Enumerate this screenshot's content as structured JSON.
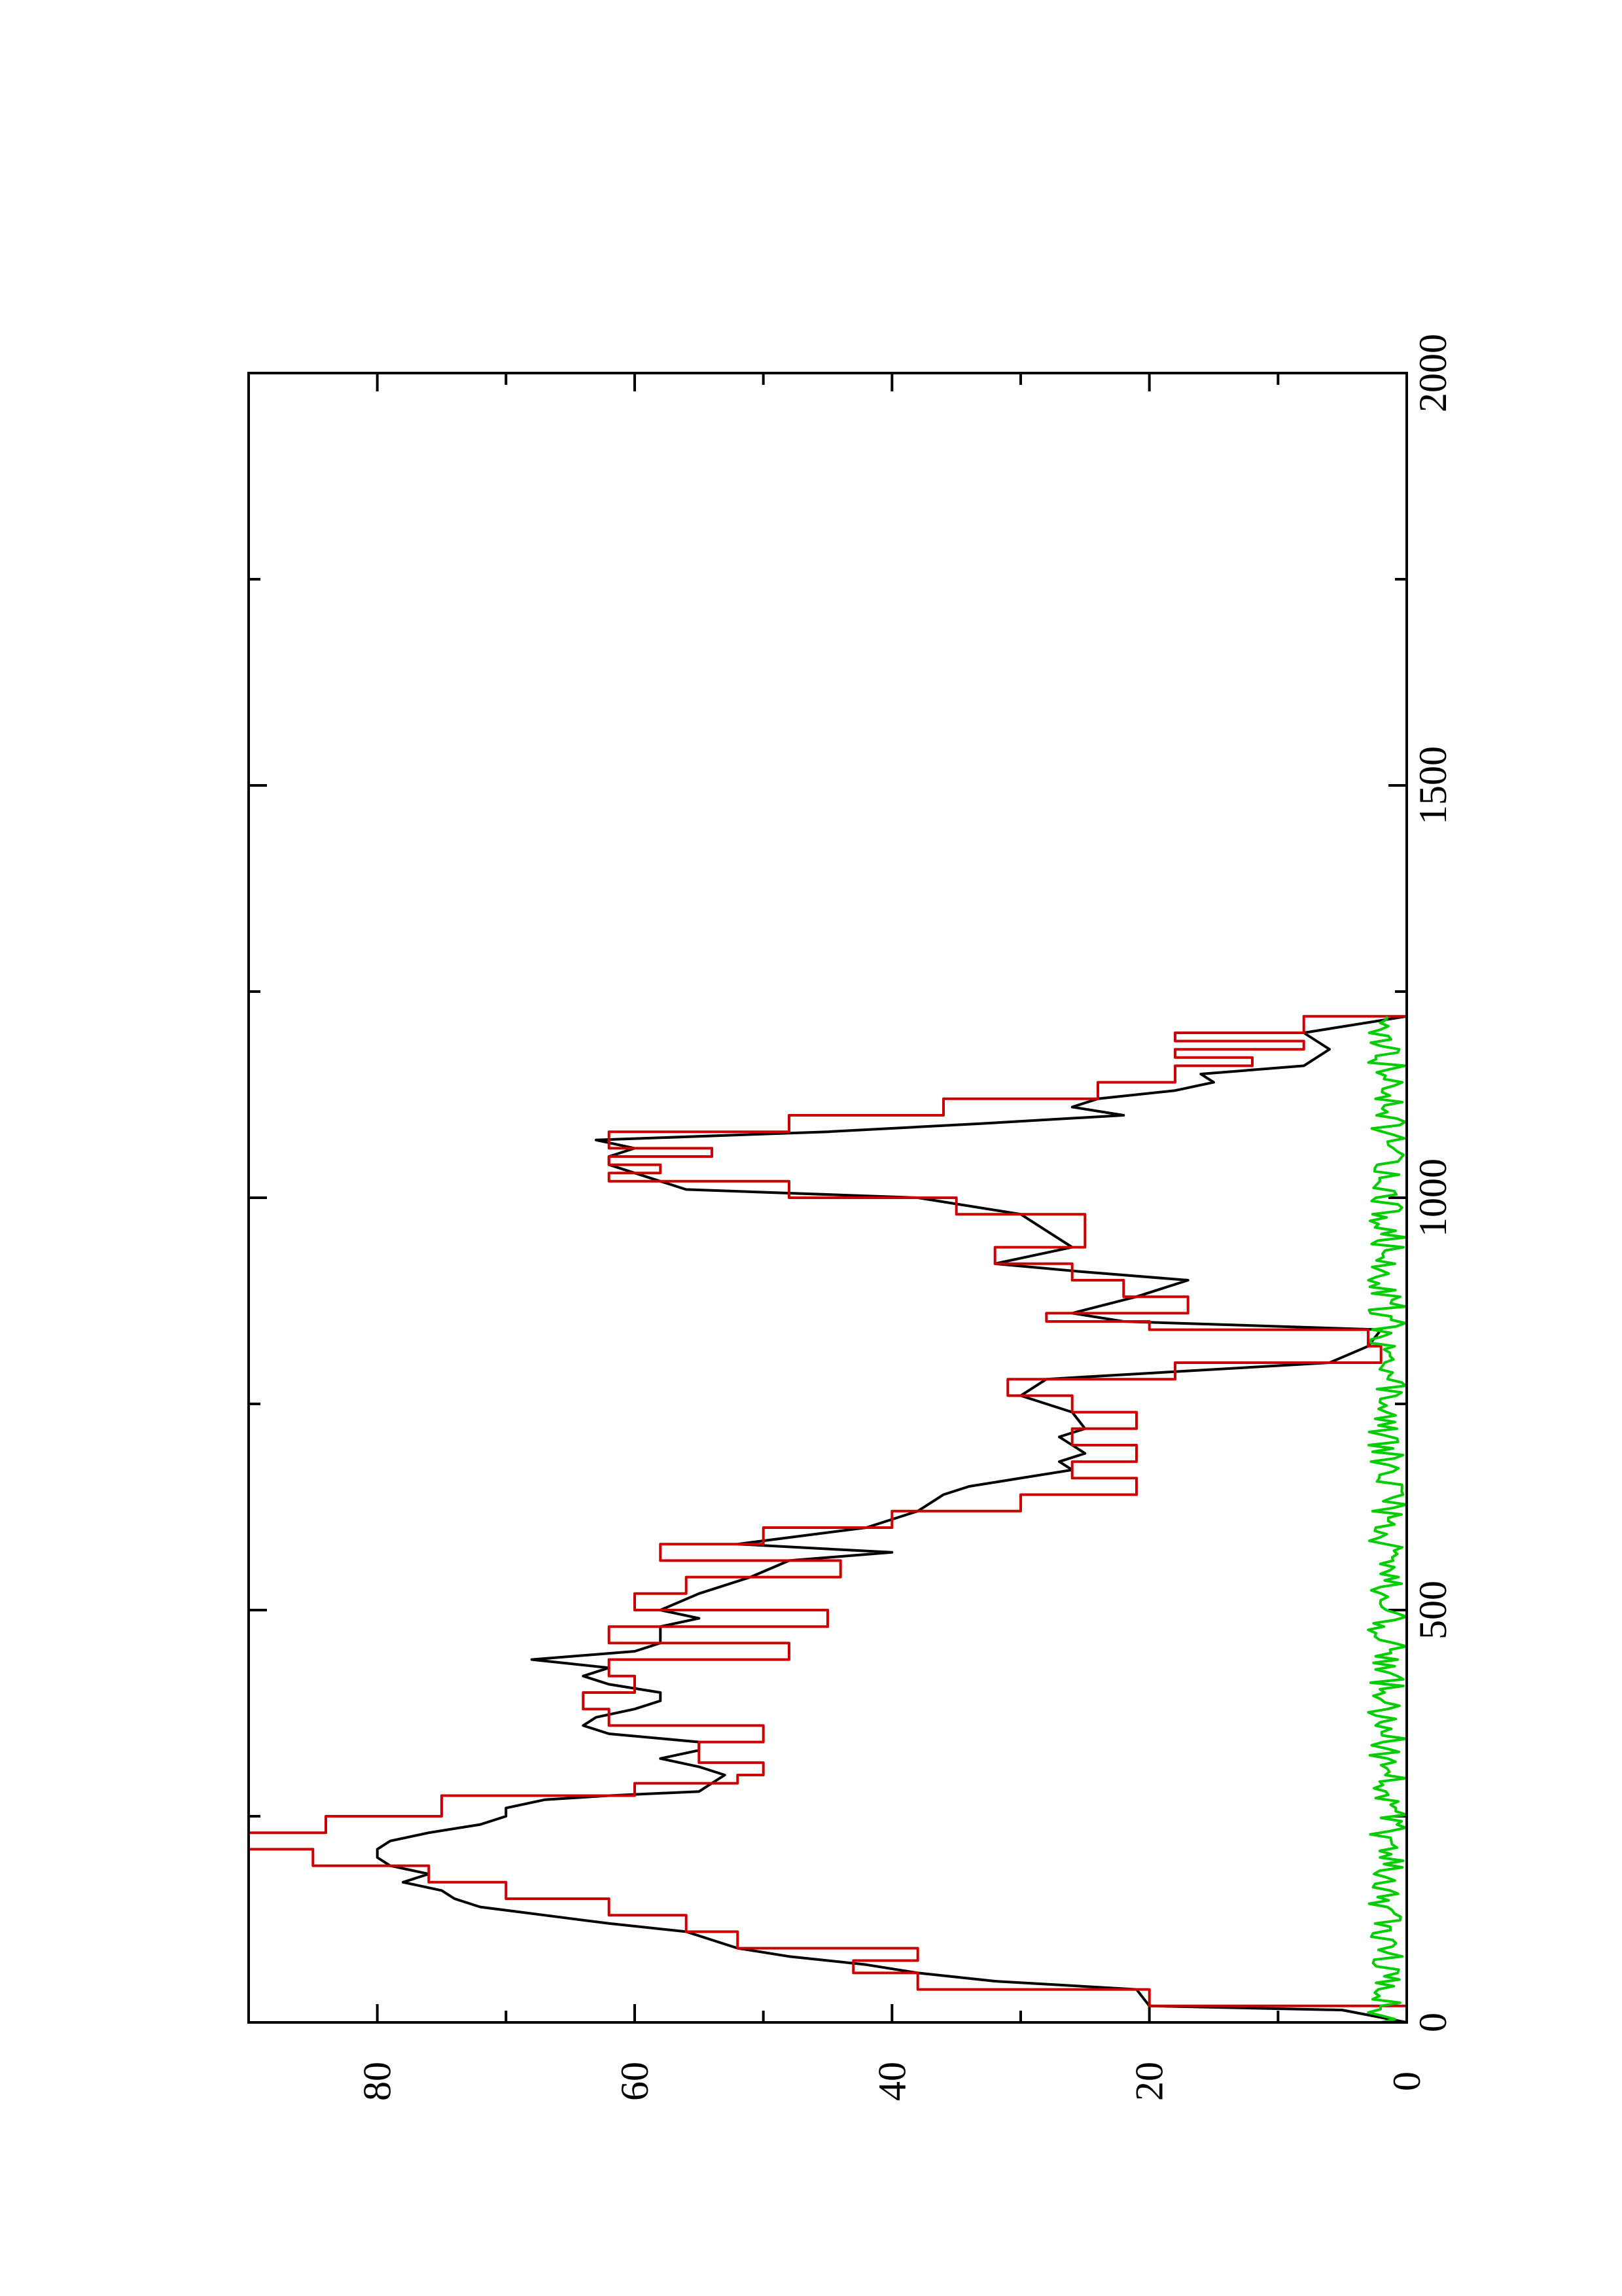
{
  "chart_data": {
    "type": "line",
    "orientation": "rotated 90° counter-clockwise (x axis vertical, increasing upward; y axis horizontal, increasing leftward)",
    "title": "",
    "xlabel": "",
    "ylabel": "",
    "xlim": [
      0,
      2000
    ],
    "ylim": [
      0,
      90
    ],
    "x_ticks": [
      0,
      500,
      1000,
      1500,
      2000
    ],
    "x_minor_ticks": [
      250,
      750,
      1250,
      1750
    ],
    "y_ticks": [
      0,
      20,
      40,
      60,
      80
    ],
    "y_minor_ticks": [
      10,
      30,
      50,
      70
    ],
    "grid": false,
    "legend": "none",
    "series": [
      {
        "color": "#000000",
        "style": "smooth",
        "x": [
          0,
          15,
          20,
          40,
          50,
          60,
          70,
          80,
          90,
          100,
          110,
          120,
          130,
          140,
          150,
          160,
          170,
          180,
          190,
          200,
          210,
          220,
          230,
          240,
          250,
          260,
          270,
          275,
          280,
          290,
          300,
          310,
          320,
          330,
          340,
          350,
          360,
          370,
          380,
          390,
          400,
          410,
          420,
          430,
          440,
          450,
          460,
          470,
          480,
          490,
          500,
          520,
          540,
          560,
          570,
          580,
          600,
          620,
          640,
          650,
          660,
          670,
          680,
          690,
          700,
          710,
          720,
          740,
          760,
          780,
          800,
          820,
          840,
          850,
          860,
          880,
          900,
          910,
          920,
          940,
          960,
          980,
          1000,
          1010,
          1020,
          1030,
          1040,
          1050,
          1060,
          1070,
          1080,
          1090,
          1100,
          1110,
          1120,
          1130,
          1140,
          1150,
          1160,
          1180,
          1200,
          1220
        ],
        "values": [
          0,
          5,
          20,
          21,
          32,
          38,
          42,
          48,
          52,
          54,
          56,
          62,
          67,
          72,
          74,
          75,
          78,
          76,
          79,
          80,
          80,
          79,
          76,
          72,
          70,
          70,
          67,
          62,
          55,
          54,
          53,
          55,
          58,
          55,
          55,
          62,
          64,
          63,
          60,
          58,
          58,
          62,
          64,
          62,
          68,
          60,
          58,
          58,
          58,
          55,
          58,
          55,
          51,
          48,
          40,
          52,
          42,
          38,
          36,
          34,
          30,
          26,
          27,
          25,
          26,
          27,
          25,
          26,
          30,
          28,
          6,
          3,
          2,
          22,
          26,
          21,
          17,
          25,
          32,
          26,
          28,
          30,
          38,
          56,
          58,
          60,
          62,
          62,
          60,
          63,
          45,
          33,
          22,
          26,
          24,
          18,
          15,
          16,
          8,
          6,
          8,
          0
        ],
        "note": "black smooth curve"
      },
      {
        "color": "#cc0000",
        "style": "step",
        "x": [
          0,
          20,
          40,
          60,
          75,
          90,
          110,
          130,
          150,
          170,
          190,
          210,
          230,
          250,
          275,
          290,
          300,
          315,
          340,
          360,
          380,
          400,
          420,
          440,
          460,
          480,
          500,
          520,
          540,
          560,
          580,
          600,
          620,
          640,
          660,
          680,
          700,
          720,
          740,
          760,
          780,
          800,
          820,
          840,
          850,
          860,
          880,
          900,
          920,
          940,
          960,
          980,
          1000,
          1020,
          1030,
          1040,
          1050,
          1060,
          1080,
          1100,
          1120,
          1140,
          1160,
          1170,
          1180,
          1190,
          1200,
          1220
        ],
        "values": [
          0,
          20,
          38,
          43,
          38,
          52,
          56,
          62,
          70,
          76,
          85,
          90,
          84,
          75,
          60,
          52,
          50,
          55,
          50,
          62,
          64,
          60,
          62,
          48,
          62,
          45,
          60,
          56,
          44,
          58,
          50,
          40,
          30,
          21,
          26,
          21,
          26,
          21,
          26,
          31,
          18,
          2,
          3,
          20,
          28,
          17,
          22,
          26,
          32,
          25,
          25,
          35,
          48,
          62,
          58,
          62,
          54,
          62,
          48,
          36,
          24,
          18,
          12,
          18,
          8,
          18,
          8,
          0
        ],
        "note": "red step histogram"
      },
      {
        "color": "#00cc00",
        "style": "noise",
        "x_range": [
          0,
          1220
        ],
        "values_range": [
          0,
          3
        ],
        "note": "green fluctuating band near zero"
      }
    ]
  }
}
